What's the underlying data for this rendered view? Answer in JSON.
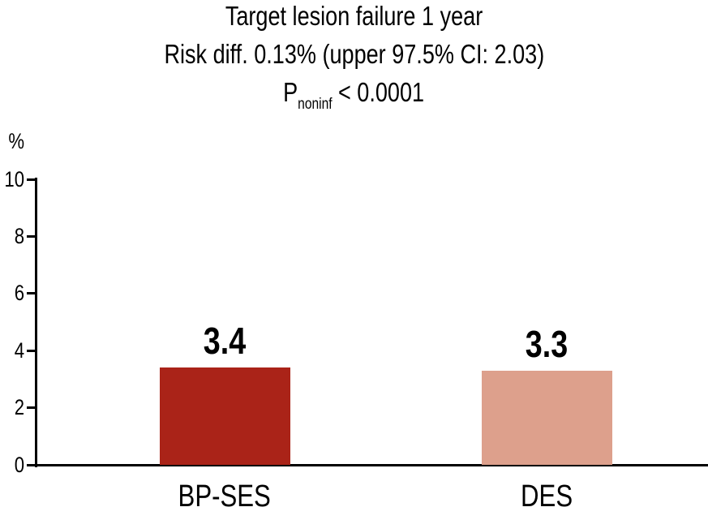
{
  "chart_data": {
    "type": "bar",
    "title": "Target lesion failure 1 year",
    "subtitle": "Risk diff. 0.13% (upper 97.5% CI: 2.03)",
    "p_label": {
      "prefix": "P",
      "subscript": "noninf",
      "rest": "< 0.0001"
    },
    "ylabel": "%",
    "ylim": [
      0,
      10
    ],
    "yticks": [
      0,
      2,
      4,
      6,
      8,
      10
    ],
    "categories": [
      "BP-SES",
      "DES"
    ],
    "values": [
      3.4,
      3.3
    ],
    "value_labels": [
      "3.4",
      "3.3"
    ],
    "bar_colors": [
      "#aa2318",
      "#dda08c"
    ],
    "text_color": "#000000",
    "axis_color": "#000000",
    "grid": false,
    "legend_position": "none"
  }
}
